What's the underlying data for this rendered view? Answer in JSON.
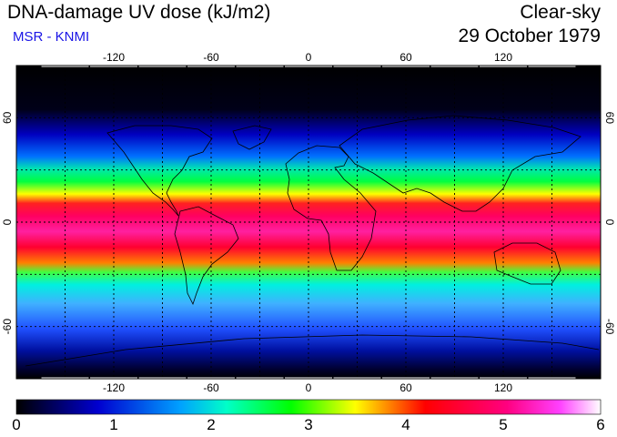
{
  "header": {
    "title": "DNA-damage UV dose (kJ/m2)",
    "credit": "MSR - KNMI",
    "condition": "Clear-sky",
    "date": "29 October 1979"
  },
  "map": {
    "longitude_ticks": [
      "-120",
      "-60",
      "0",
      "60",
      "120"
    ],
    "longitude_values": [
      -120,
      -60,
      0,
      60,
      120
    ],
    "latitude_ticks": [
      "60",
      "0",
      "-60"
    ],
    "latitude_values": [
      60,
      0,
      -60
    ],
    "lon_range": [
      -180,
      180
    ],
    "lat_range": [
      -90,
      90
    ]
  },
  "colorbar": {
    "labels": [
      "0",
      "1",
      "2",
      "3",
      "4",
      "5",
      "6"
    ],
    "values": [
      0,
      1,
      2,
      3,
      4,
      5,
      6
    ],
    "colors": [
      "#000000",
      "#0000d0",
      "#00a0ff",
      "#00ffc8",
      "#00ff00",
      "#ffff00",
      "#ff0000",
      "#ff0080",
      "#ff40ff",
      "#ffffff"
    ]
  },
  "colors": {
    "credit": "#1a14e6",
    "land_outline": "#000000"
  }
}
